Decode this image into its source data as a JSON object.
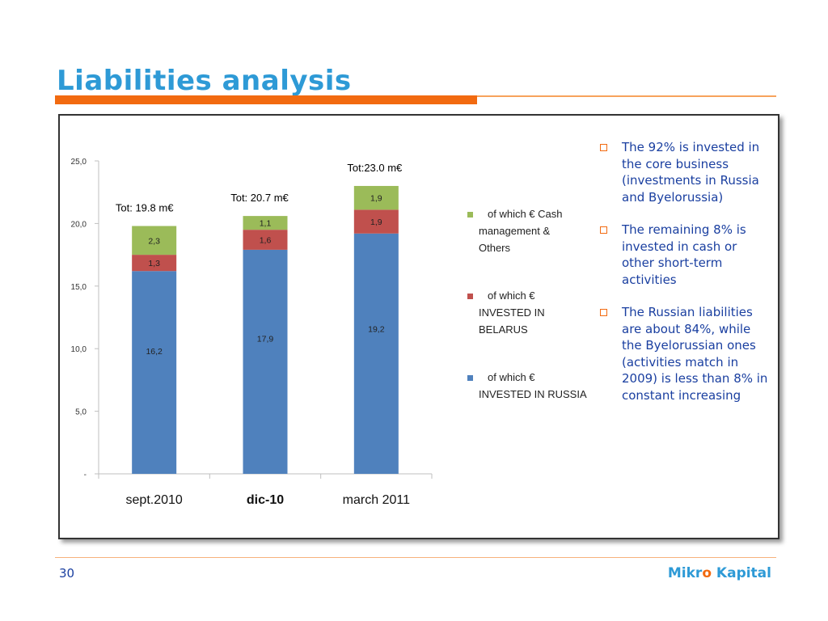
{
  "slide": {
    "title": "Liabilities analysis",
    "page_number": "30",
    "brand_part1": "Mikr",
    "brand_o": "o",
    "brand_part2": " Kapital"
  },
  "colors": {
    "accent_orange": "#f26a10",
    "title_blue": "#2e9ad6",
    "text_blue": "#1a3fa0",
    "russia": "#4f81bd",
    "belarus": "#c0504d",
    "cash": "#9bbb59"
  },
  "bullets": [
    "The 92% is invested in the core business (investments in Russia and Byelorussia)",
    "The remaining 8% is invested in cash or other short-term activities",
    "The Russian liabilities are about 84%, while the Byelorussian ones (activities match in 2009) is less than 8% in constant increasing"
  ],
  "chart_data": {
    "type": "bar",
    "stacked": true,
    "categories": [
      "sept.2010",
      "dic-10",
      "march 2011"
    ],
    "series": [
      {
        "name": "of which € INVESTED IN RUSSIA",
        "legend_lines": [
          "of which €",
          "INVESTED IN RUSSIA"
        ],
        "values": [
          16.2,
          17.9,
          19.2
        ],
        "labels": [
          "16,2",
          "17,9",
          "19,2"
        ],
        "color": "#4f81bd"
      },
      {
        "name": "of which € INVESTED IN BELARUS",
        "legend_lines": [
          "of which €",
          "INVESTED IN",
          "BELARUS"
        ],
        "values": [
          1.3,
          1.6,
          1.9
        ],
        "labels": [
          "1,3",
          "1,6",
          "1,9"
        ],
        "color": "#c0504d"
      },
      {
        "name": "of which € Cash management & Others",
        "legend_lines": [
          "of which € Cash",
          "management &",
          "Others"
        ],
        "values": [
          2.3,
          1.1,
          1.9
        ],
        "labels": [
          "2,3",
          "1,1",
          "1,9"
        ],
        "color": "#9bbb59"
      }
    ],
    "totals": [
      "Tot: 19.8 m€",
      "Tot: 20.7 m€",
      "Tot:23.0 m€"
    ],
    "ylim": [
      0,
      25
    ],
    "yticks": [
      0,
      5,
      10,
      15,
      20,
      25
    ],
    "ytick_labels": [
      "-",
      "5,0",
      "10,0",
      "15,0",
      "20,0",
      "25,0"
    ],
    "legend_position": "right",
    "grid": false
  }
}
